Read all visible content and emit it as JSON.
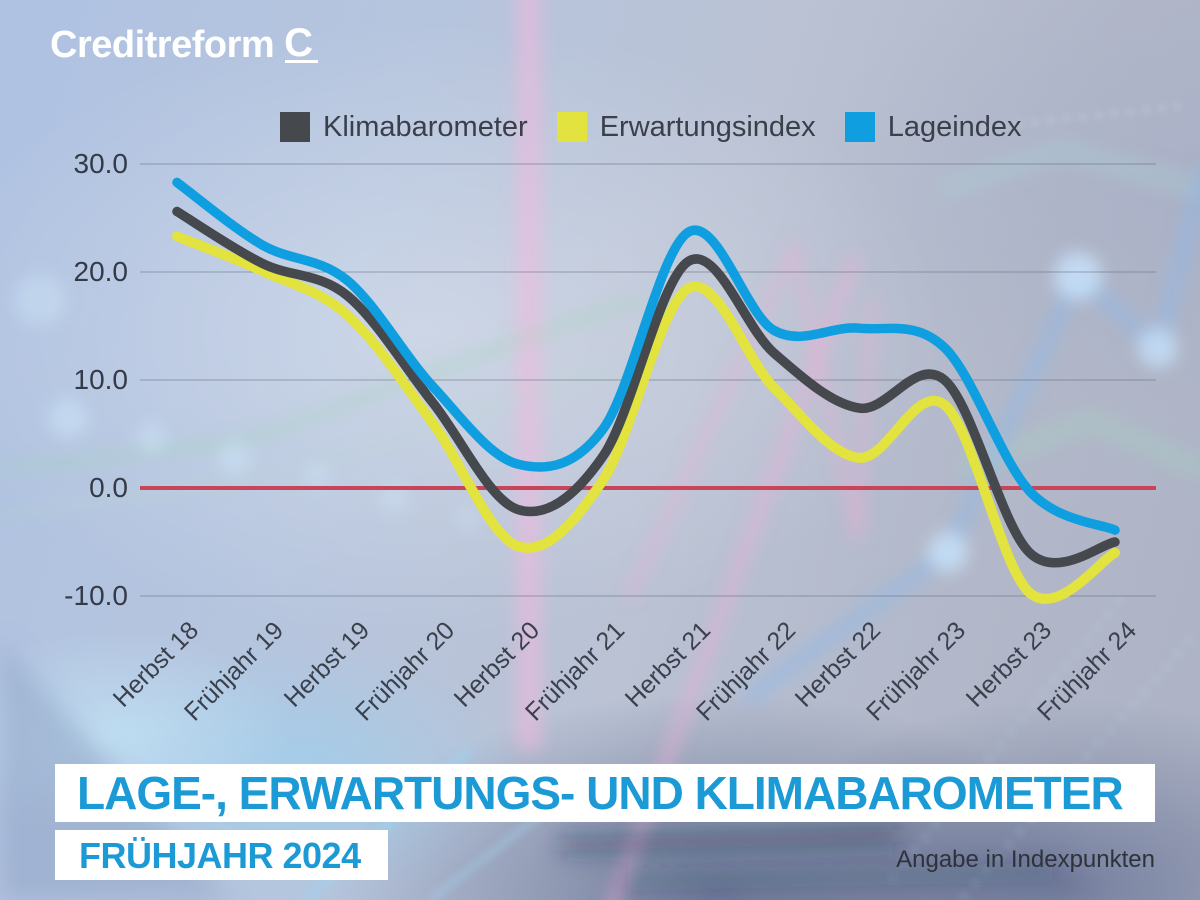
{
  "logo": {
    "text": "Creditreform",
    "mark": "C"
  },
  "legend": [
    {
      "label": "Klimabarometer",
      "color": "#45484c"
    },
    {
      "label": "Erwartungsindex",
      "color": "#e2e33e"
    },
    {
      "label": "Lageindex",
      "color": "#0f9fe0"
    }
  ],
  "title": {
    "main": "LAGE-, ERWARTUNGS- UND KLIMABAROMETER",
    "sub": "FRÜHJAHR 2024",
    "note": "Angabe in Indexpunkten",
    "accent_color": "#1b9ad5"
  },
  "chart_data": {
    "type": "line",
    "categories": [
      "Herbst 18",
      "Frühjahr 19",
      "Herbst 19",
      "Frühjahr 20",
      "Herbst 20",
      "Frühjahr 21",
      "Herbst 21",
      "Frühjahr 22",
      "Herbst 22",
      "Frühjahr 23",
      "Herbst 23",
      "Frühjahr 24"
    ],
    "series": [
      {
        "name": "Klimabarometer",
        "color": "#45484c",
        "values": [
          25.6,
          20.8,
          17.8,
          7.9,
          -2.0,
          3.0,
          21.0,
          12.5,
          7.4,
          10.0,
          -6.0,
          -5.0
        ]
      },
      {
        "name": "Erwartungsindex",
        "color": "#e2e33e",
        "values": [
          23.3,
          20.1,
          16.0,
          6.0,
          -5.4,
          0.8,
          18.5,
          9.3,
          2.8,
          7.7,
          -9.7,
          -6.0
        ]
      },
      {
        "name": "Lageindex",
        "color": "#0f9fe0",
        "values": [
          28.3,
          22.5,
          19.2,
          9.4,
          2.2,
          5.5,
          23.7,
          14.6,
          14.8,
          13.0,
          -0.3,
          -3.9
        ]
      }
    ],
    "ylim": [
      -10,
      30
    ],
    "yticks": [
      30.0,
      20.0,
      10.0,
      0.0,
      -10.0
    ],
    "ytick_labels": [
      "30.0",
      "20.0",
      "10.0",
      "0.0",
      "-10.0"
    ],
    "zero_line_color": "#c84458",
    "grid": true,
    "legend_position": "top",
    "unit_note": "Angabe in Indexpunkten"
  }
}
